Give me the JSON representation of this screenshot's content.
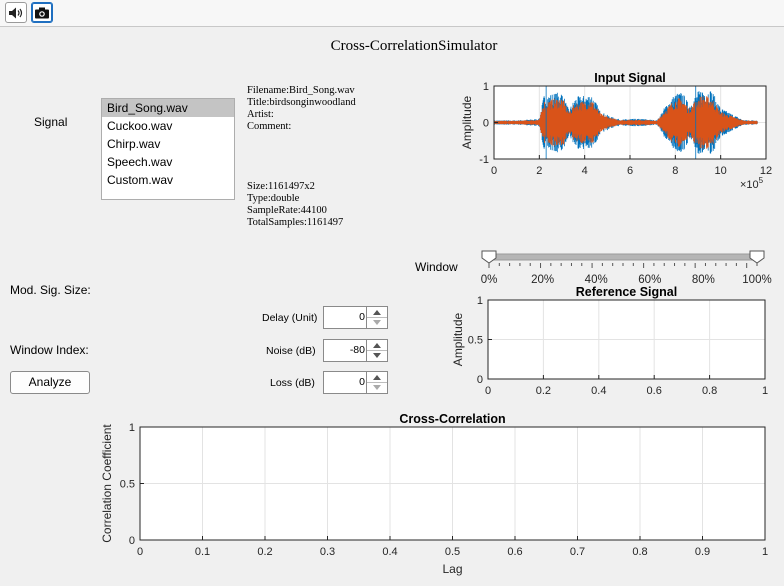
{
  "toolbar": {
    "speaker_icon": "speaker-icon",
    "camera_icon": "camera-icon"
  },
  "app_title": "Cross-CorrelationSimulator",
  "signal": {
    "label": "Signal",
    "items": [
      "Bird_Song.wav",
      "Cuckoo.wav",
      "Chirp.wav",
      "Speech.wav",
      "Custom.wav"
    ],
    "selected": "Bird_Song.wav"
  },
  "file_info": {
    "filename": "Filename:Bird_Song.wav",
    "title": "Title:birdsonginwoodland",
    "artist": "Artist:",
    "comment": "Comment:",
    "size": "Size:1161497x2",
    "type": "Type:double",
    "sample_rate": "SampleRate:44100",
    "total_samples": "TotalSamples:1161497"
  },
  "window_slider": {
    "label": "Window",
    "ticks": [
      "0%",
      "20%",
      "40%",
      "60%",
      "80%",
      "100%"
    ],
    "low_value": 0,
    "high_value": 1
  },
  "controls": {
    "mod_sig_size_label": "Mod. Sig. Size:",
    "window_index_label": "Window Index:",
    "analyze_label": "Analyze",
    "delay": {
      "label": "Delay (Unit)",
      "value": "0"
    },
    "noise": {
      "label": "Noise (dB)",
      "value": "-80"
    },
    "loss": {
      "label": "Loss (dB)",
      "value": "0"
    }
  },
  "chart_data": [
    {
      "type": "line",
      "title": "Input Signal",
      "xlabel": "",
      "ylabel": "Amplitude",
      "xlim": [
        0,
        1200000
      ],
      "ylim": [
        -1,
        1
      ],
      "x_ticks": [
        "0",
        "2",
        "4",
        "6",
        "8",
        "10",
        "12"
      ],
      "y_ticks": [
        "-1",
        "0",
        "1"
      ],
      "x_exponent": "×10",
      "x_exponent_power": "5",
      "grid": true,
      "series": [
        {
          "color": "#0072bd",
          "envelope_x": [
            0,
            100000,
            200000,
            220000,
            260000,
            300000,
            330000,
            360000,
            400000,
            430000,
            470000,
            520000,
            560000,
            600000,
            660000,
            720000,
            760000,
            800000,
            830000,
            860000,
            900000,
            920000,
            960000,
            1000000,
            1100000,
            1161497
          ],
          "envelope": [
            0.06,
            0.06,
            0.1,
            0.75,
            0.8,
            0.85,
            0.35,
            0.7,
            0.75,
            0.8,
            0.3,
            0.15,
            0.08,
            0.1,
            0.1,
            0.06,
            0.5,
            0.8,
            0.85,
            0.5,
            0.85,
            0.95,
            0.9,
            0.4,
            0.07,
            0.06
          ]
        },
        {
          "color": "#d95319",
          "envelope_x": [
            0,
            100000,
            200000,
            220000,
            260000,
            300000,
            330000,
            360000,
            400000,
            430000,
            470000,
            520000,
            560000,
            600000,
            660000,
            720000,
            760000,
            800000,
            830000,
            860000,
            900000,
            920000,
            960000,
            1000000,
            1100000,
            1161497
          ],
          "envelope": [
            0.05,
            0.05,
            0.08,
            0.6,
            0.65,
            0.7,
            0.3,
            0.55,
            0.6,
            0.65,
            0.25,
            0.12,
            0.07,
            0.08,
            0.08,
            0.05,
            0.4,
            0.65,
            0.7,
            0.4,
            0.7,
            0.75,
            0.7,
            0.3,
            0.06,
            0.05
          ]
        }
      ],
      "markers_x": [
        230000,
        890000
      ]
    },
    {
      "type": "line",
      "title": "Reference Signal",
      "xlabel": "",
      "ylabel": "Amplitude",
      "xlim": [
        0,
        1
      ],
      "ylim": [
        0,
        1
      ],
      "x_ticks": [
        "0",
        "0.2",
        "0.4",
        "0.6",
        "0.8",
        "1"
      ],
      "y_ticks": [
        "0",
        "0.5",
        "1"
      ],
      "grid": true,
      "series": []
    },
    {
      "type": "line",
      "title": "Cross-Correlation",
      "xlabel": "Lag",
      "ylabel": "Correlation Coefficient",
      "xlim": [
        0,
        1
      ],
      "ylim": [
        0,
        1
      ],
      "x_ticks": [
        "0",
        "0.1",
        "0.2",
        "0.3",
        "0.4",
        "0.5",
        "0.6",
        "0.7",
        "0.8",
        "0.9",
        "1"
      ],
      "y_ticks": [
        "0",
        "0.5",
        "1"
      ],
      "grid": true,
      "series": []
    }
  ]
}
